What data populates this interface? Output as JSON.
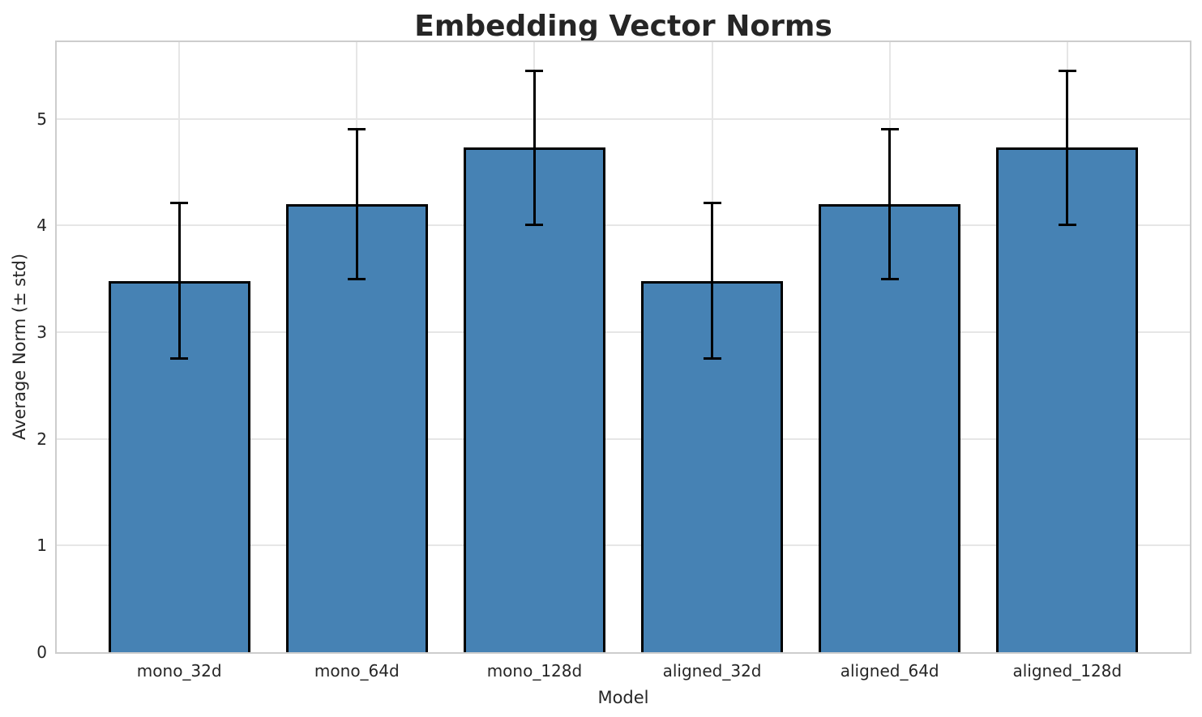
{
  "chart_data": {
    "type": "bar",
    "title": "Embedding Vector Norms",
    "xlabel": "Model",
    "ylabel": "Average Norm (± std)",
    "categories": [
      "mono_32d",
      "mono_64d",
      "mono_128d",
      "aligned_32d",
      "aligned_64d",
      "aligned_128d"
    ],
    "values": [
      3.48,
      4.2,
      4.73,
      3.48,
      4.2,
      4.73
    ],
    "errors": [
      0.73,
      0.7,
      0.72,
      0.73,
      0.7,
      0.72
    ],
    "error_bar_style": "± std, capped",
    "yticks": [
      0,
      1,
      2,
      3,
      4,
      5
    ],
    "ylim": [
      0,
      5.72
    ],
    "xlim": [
      -0.69,
      5.69
    ],
    "bar_width_units": 0.8,
    "grid": true,
    "legend": false,
    "colors": {
      "bar_fill": "#4682b4",
      "bar_edge": "#000000",
      "error_bar": "#000000",
      "grid_line": "#e6e6e6",
      "spine": "#cdcdcd",
      "text": "#262626",
      "background": "#ffffff"
    }
  }
}
